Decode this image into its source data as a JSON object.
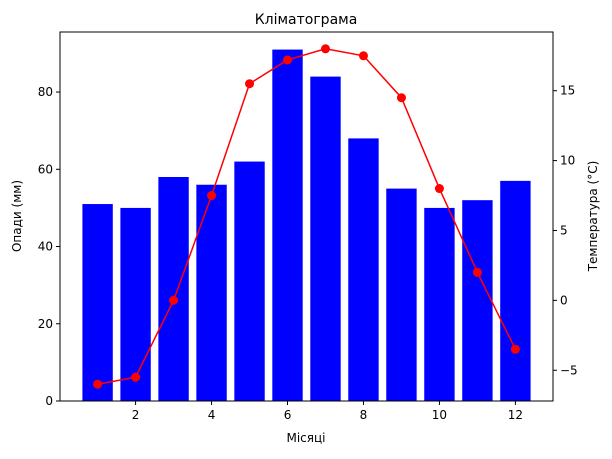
{
  "chart_data": {
    "type": "bar+line",
    "title": "Кліматограма",
    "xlabel": "Місяці",
    "ylabel_left": "Опади (мм)",
    "ylabel_right": "Температура (°C)",
    "x": [
      1,
      2,
      3,
      4,
      5,
      6,
      7,
      8,
      9,
      10,
      11,
      12
    ],
    "xlim": [
      0.01,
      12.99
    ],
    "xticks": [
      2,
      4,
      6,
      8,
      10,
      12
    ],
    "ylim_left": [
      0,
      95.55
    ],
    "yticks_left": [
      0,
      20,
      40,
      60,
      80
    ],
    "ylim_right": [
      -7.2,
      19.2
    ],
    "yticks_right": [
      -5,
      0,
      5,
      10,
      15
    ],
    "grid": false,
    "series": [
      {
        "kind": "bar",
        "axis": "left",
        "color": "#0000ff",
        "values": [
          51,
          50,
          58,
          56,
          62,
          91,
          84,
          68,
          55,
          50,
          52,
          57
        ]
      },
      {
        "kind": "line",
        "axis": "right",
        "color": "#ff0000",
        "marker": "circle",
        "values": [
          -6,
          -5.5,
          0,
          7.5,
          15.5,
          17.2,
          18,
          17.5,
          14.5,
          8,
          2,
          -3.5
        ]
      }
    ]
  }
}
